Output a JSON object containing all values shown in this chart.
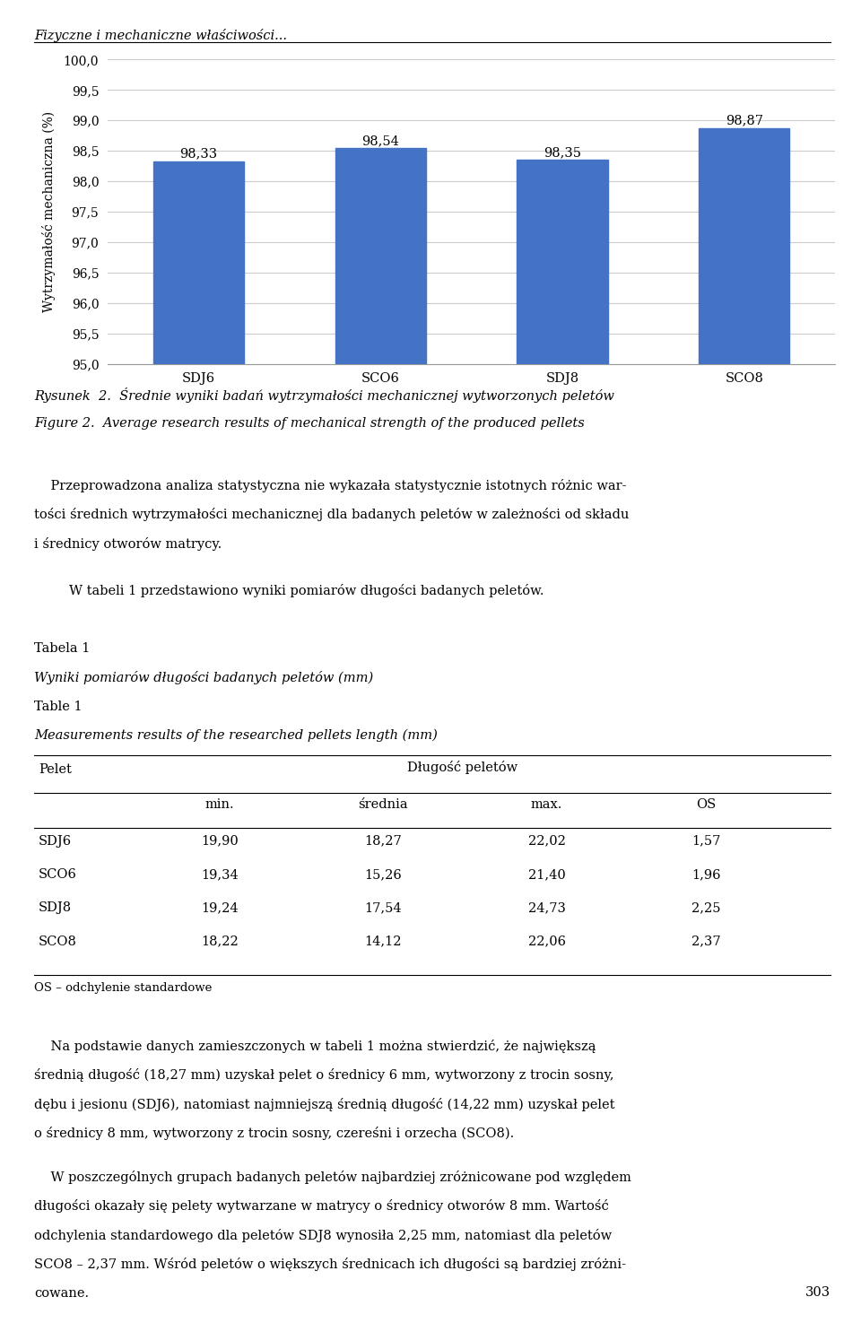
{
  "header_text": "Fizyczne i mechaniczne właściwości...",
  "bar_categories": [
    "SDJ6",
    "SCO6",
    "SDJ8",
    "SCO8"
  ],
  "bar_values": [
    98.33,
    98.54,
    98.35,
    98.87
  ],
  "bar_color": "#4472C4",
  "ylabel": "Wytrzymałość mechaniczna (%)",
  "ylim_min": 95.0,
  "ylim_max": 100.0,
  "yticks": [
    95.0,
    95.5,
    96.0,
    96.5,
    97.0,
    97.5,
    98.0,
    98.5,
    99.0,
    99.5,
    100.0
  ],
  "caption_pl": "Rysunek  2.  Średnie wyniki badań wytrzymałości mechanicznej wytworzonych peletów",
  "caption_en": "Figure 2.  Average research results of mechanical strength of the produced pellets",
  "tabela_header": "Tabela 1",
  "tabela_title_pl": "Wyniki pomiarów długości badanych peletów (mm)",
  "tabela_title_en": "Table 1",
  "tabela_subtitle_en": "Measurements results of the researched pellets length (mm)",
  "table_col_header_pl": "Długość peletów",
  "table_col1": "min.",
  "table_col2": "średnia",
  "table_col3": "max.",
  "table_col4": "OS",
  "table_row_header": "Pelet",
  "table_rows": [
    [
      "SDJ6",
      "19,90",
      "18,27",
      "22,02",
      "1,57"
    ],
    [
      "SCO6",
      "19,34",
      "15,26",
      "21,40",
      "1,96"
    ],
    [
      "SDJ8",
      "19,24",
      "17,54",
      "24,73",
      "2,25"
    ],
    [
      "SCO8",
      "18,22",
      "14,12",
      "22,06",
      "2,37"
    ]
  ],
  "table_footnote": "OS – odchylenie standardowe",
  "page_number": "303",
  "bg_color": "#ffffff",
  "grid_color": "#cccccc"
}
